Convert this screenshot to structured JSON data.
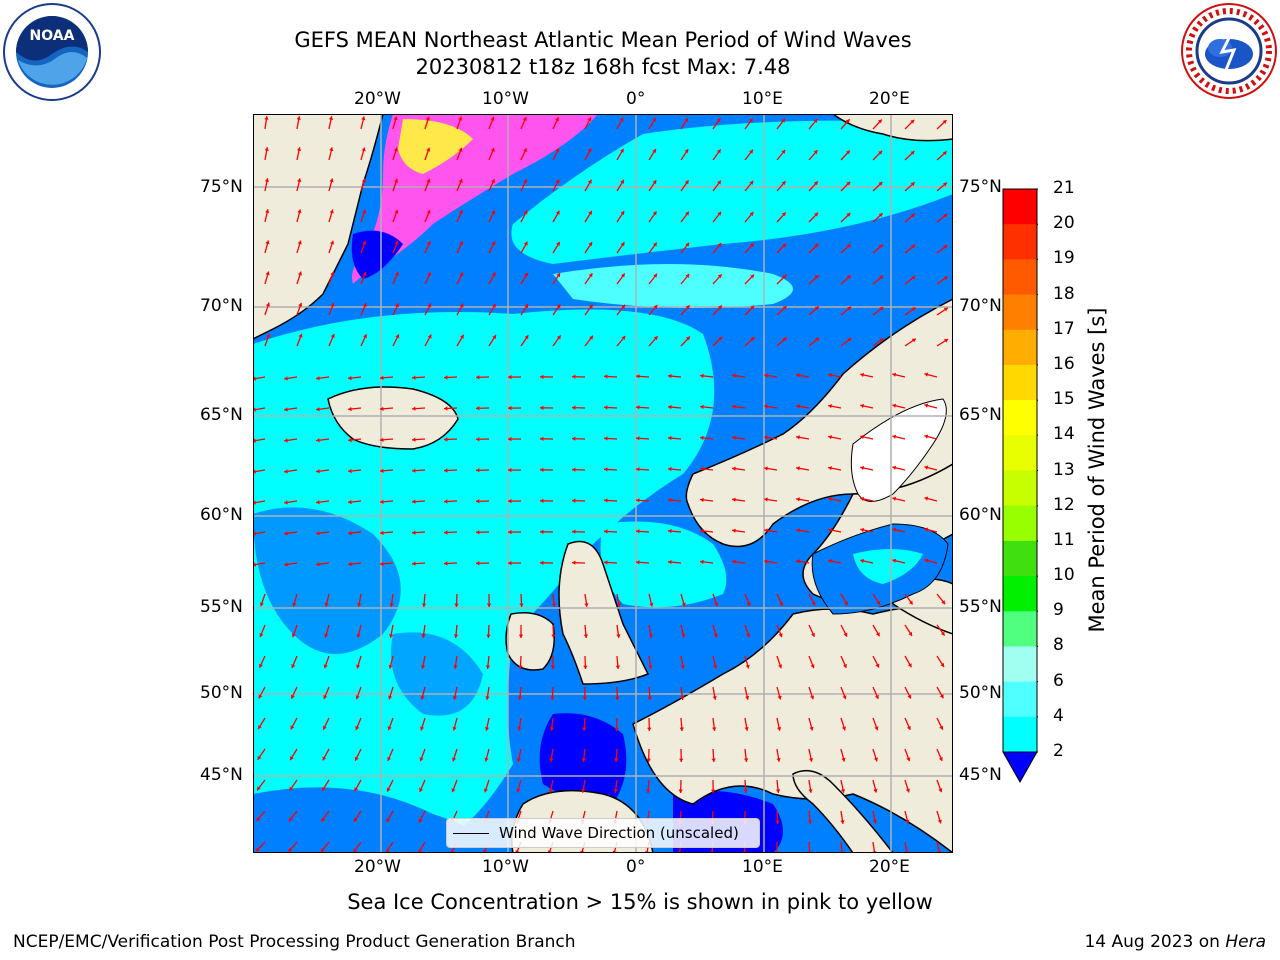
{
  "title": {
    "line1": "GEFS MEAN Northeast Atlantic Mean Period of Wind Waves",
    "line2": "20230812 t18z 168h fcst   Max: 7.48"
  },
  "logos": {
    "left": {
      "icon": "noaa-logo",
      "text": "NOAA",
      "ring_text": "NATIONAL OCEANIC AND ATMOSPHERIC ADMINISTRATION · U.S. DEPARTMENT OF COMMERCE"
    },
    "right": {
      "icon": "nws-logo",
      "ring_text": "NATIONAL WEATHER SERVICE"
    }
  },
  "map": {
    "lon_ticks_top": [
      "20°W",
      "10°W",
      "0°",
      "10°E",
      "20°E"
    ],
    "lon_ticks_bottom": [
      "20°W",
      "10°W",
      "0°",
      "10°E",
      "20°E"
    ],
    "lat_ticks_left": [
      "75°N",
      "70°N",
      "65°N",
      "60°N",
      "55°N",
      "50°N",
      "45°N"
    ],
    "lat_ticks_right": [
      "75°N",
      "70°N",
      "65°N",
      "60°N",
      "55°N",
      "50°N",
      "45°N"
    ],
    "legend_label": "Wind Wave Direction (unscaled)",
    "colors": {
      "land": "#efecdc",
      "ocean_low": "#0080ff",
      "ocean_mid": "#00ffff",
      "ocean_light": "#4dffff",
      "deep": "#0000ff",
      "ice_pink": "#ff55ee",
      "ice_yellow": "#ffe84a",
      "arrow": "#ff0000",
      "grid": "#b0b0b0"
    }
  },
  "colorbar": {
    "title": "Mean Period of Wind Waves [s]",
    "labels": [
      "21",
      "20",
      "19",
      "18",
      "17",
      "16",
      "15",
      "14",
      "13",
      "12",
      "11",
      "10",
      "9",
      "8",
      "6",
      "4",
      "2"
    ],
    "colors": [
      "#ff0000",
      "#ff3000",
      "#ff5a00",
      "#ff8000",
      "#ffae00",
      "#ffd800",
      "#ffff00",
      "#e8ff00",
      "#c8ff00",
      "#98ff00",
      "#40e010",
      "#00f000",
      "#50ff80",
      "#a0fff0",
      "#50ffff",
      "#00ffff",
      "#0080ff"
    ],
    "under_color": "#0000ff"
  },
  "subtitle": "Sea Ice Concentration > 15% is shown in pink to yellow",
  "footer": {
    "left": "NCEP/EMC/Verification Post Processing Product Generation Branch",
    "right_date": "14 Aug 2023 on ",
    "right_host": "Hera"
  }
}
